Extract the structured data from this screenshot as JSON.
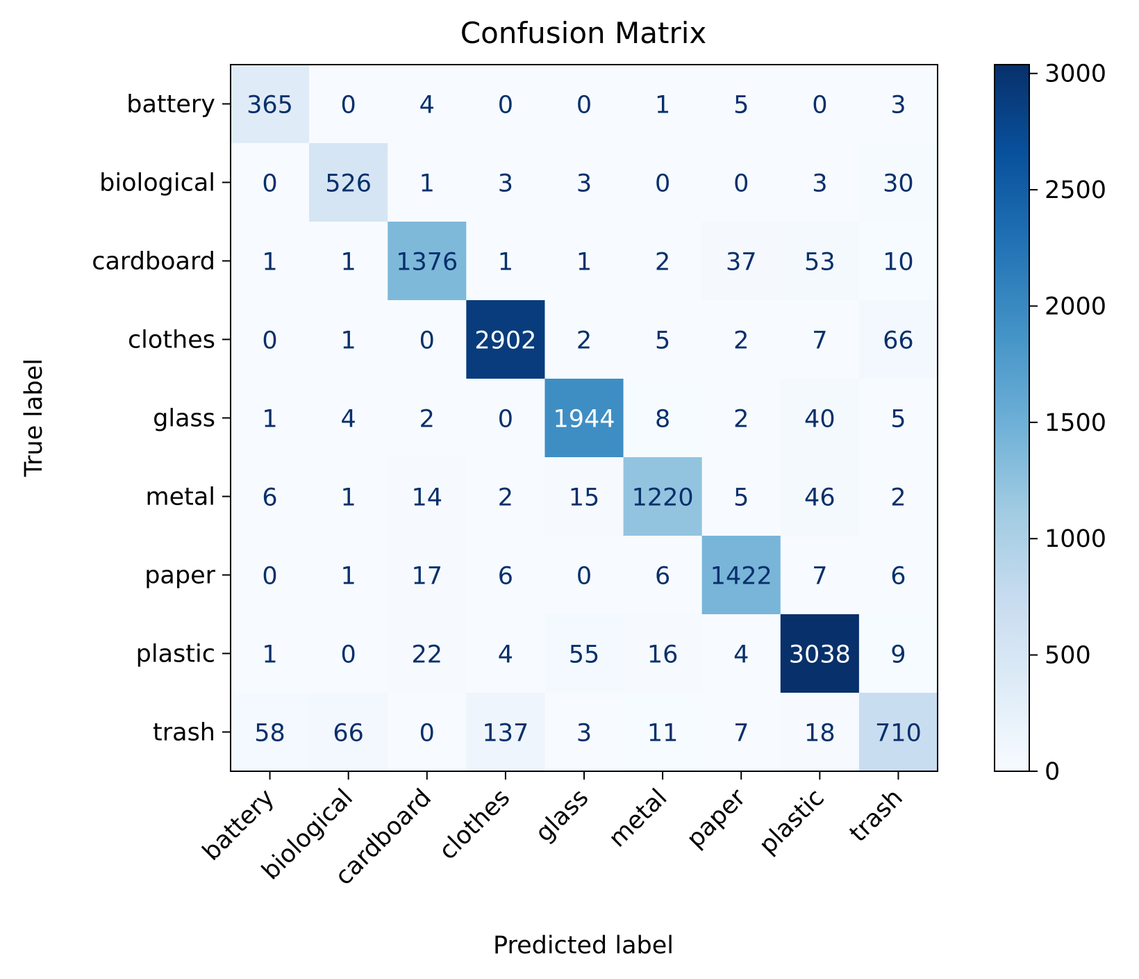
{
  "chart_data": {
    "type": "heatmap",
    "title": "Confusion Matrix",
    "xlabel": "Predicted label",
    "ylabel": "True label",
    "x_categories": [
      "battery",
      "biological",
      "cardboard",
      "clothes",
      "glass",
      "metal",
      "paper",
      "plastic",
      "trash"
    ],
    "y_categories": [
      "battery",
      "biological",
      "cardboard",
      "clothes",
      "glass",
      "metal",
      "paper",
      "plastic",
      "trash"
    ],
    "values": [
      [
        365,
        0,
        4,
        0,
        0,
        1,
        5,
        0,
        3
      ],
      [
        0,
        526,
        1,
        3,
        3,
        0,
        0,
        3,
        30
      ],
      [
        1,
        1,
        1376,
        1,
        1,
        2,
        37,
        53,
        10
      ],
      [
        0,
        1,
        0,
        2902,
        2,
        5,
        2,
        7,
        66
      ],
      [
        1,
        4,
        2,
        0,
        1944,
        8,
        2,
        40,
        5
      ],
      [
        6,
        1,
        14,
        2,
        15,
        1220,
        5,
        46,
        2
      ],
      [
        0,
        1,
        17,
        6,
        0,
        6,
        1422,
        7,
        6
      ],
      [
        1,
        0,
        22,
        4,
        55,
        16,
        4,
        3038,
        9
      ],
      [
        58,
        66,
        0,
        137,
        3,
        11,
        7,
        18,
        710
      ]
    ],
    "colormap": "Blues",
    "colorbar": {
      "range": [
        0,
        3038
      ],
      "ticks": [
        0,
        500,
        1000,
        1500,
        2000,
        2500,
        3000
      ]
    },
    "grid": false,
    "legend": "colorbar-right"
  }
}
